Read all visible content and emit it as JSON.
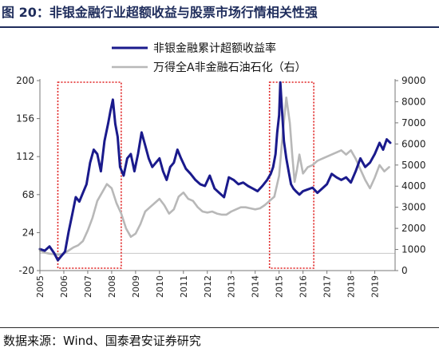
{
  "title": "图 20：非银金融行业超额收益与股票市场行情相关性强",
  "source": "数据来源：Wind、国泰君安证券研究",
  "chart_data": {
    "type": "line",
    "xlabel": "",
    "x_ticks": [
      "2005",
      "2006",
      "2007",
      "2008",
      "2009",
      "2010",
      "2011",
      "2012",
      "2013",
      "2014",
      "2015",
      "2016",
      "2017",
      "2018",
      "2019"
    ],
    "y_left": {
      "range": [
        -20,
        200
      ],
      "ticks": [
        "-20",
        "24",
        "68",
        "112",
        "156",
        "200"
      ]
    },
    "y_right": {
      "range": [
        0,
        9000
      ],
      "ticks": [
        "0",
        "1000",
        "2000",
        "3000",
        "4000",
        "5000",
        "6000",
        "7000",
        "8000",
        "9000"
      ]
    },
    "legend_position": "top-center",
    "series": [
      {
        "name": "非银金融累计超额收益率",
        "axis": "left",
        "color": "#1a1a8c",
        "x": [
          2005.0,
          2005.2,
          2005.4,
          2005.6,
          2005.75,
          2005.9,
          2006.05,
          2006.2,
          2006.35,
          2006.5,
          2006.65,
          2006.8,
          2006.95,
          2007.1,
          2007.25,
          2007.4,
          2007.55,
          2007.7,
          2007.85,
          2007.95,
          2008.05,
          2008.15,
          2008.25,
          2008.35,
          2008.5,
          2008.65,
          2008.8,
          2008.95,
          2009.1,
          2009.25,
          2009.4,
          2009.55,
          2009.7,
          2009.85,
          2010.0,
          2010.15,
          2010.3,
          2010.45,
          2010.6,
          2010.75,
          2010.9,
          2011.1,
          2011.3,
          2011.5,
          2011.7,
          2011.9,
          2012.1,
          2012.3,
          2012.5,
          2012.7,
          2012.9,
          2013.1,
          2013.3,
          2013.5,
          2013.7,
          2013.9,
          2014.1,
          2014.3,
          2014.5,
          2014.65,
          2014.75,
          2014.85,
          2014.92,
          2015.0,
          2015.05,
          2015.1,
          2015.2,
          2015.3,
          2015.4,
          2015.5,
          2015.6,
          2015.7,
          2015.85,
          2016.0,
          2016.2,
          2016.4,
          2016.6,
          2016.8,
          2017.0,
          2017.2,
          2017.4,
          2017.6,
          2017.8,
          2018.0,
          2018.2,
          2018.4,
          2018.6,
          2018.8,
          2019.0,
          2019.2,
          2019.35,
          2019.5,
          2019.65
        ],
        "y": [
          5,
          3,
          8,
          0,
          -8,
          -3,
          2,
          25,
          45,
          65,
          60,
          70,
          80,
          105,
          120,
          115,
          95,
          130,
          150,
          165,
          178,
          150,
          135,
          100,
          90,
          110,
          115,
          95,
          115,
          140,
          125,
          110,
          100,
          105,
          110,
          95,
          85,
          100,
          105,
          120,
          110,
          98,
          92,
          85,
          80,
          78,
          90,
          75,
          70,
          65,
          88,
          85,
          80,
          82,
          78,
          75,
          72,
          78,
          85,
          92,
          100,
          115,
          140,
          160,
          198,
          175,
          130,
          110,
          95,
          80,
          75,
          72,
          68,
          72,
          74,
          76,
          70,
          75,
          80,
          92,
          88,
          85,
          88,
          82,
          95,
          110,
          100,
          105,
          115,
          128,
          120,
          132,
          128
        ]
      },
      {
        "name": "万得全A非金融石油石化（右）",
        "axis": "right",
        "color": "#b8b8b8",
        "x": [
          2005.0,
          2005.2,
          2005.4,
          2005.6,
          2005.8,
          2006.0,
          2006.2,
          2006.4,
          2006.6,
          2006.8,
          2007.0,
          2007.2,
          2007.4,
          2007.6,
          2007.8,
          2008.0,
          2008.2,
          2008.4,
          2008.6,
          2008.8,
          2009.0,
          2009.2,
          2009.4,
          2009.6,
          2009.8,
          2010.0,
          2010.2,
          2010.4,
          2010.6,
          2010.8,
          2011.0,
          2011.2,
          2011.4,
          2011.6,
          2011.8,
          2012.0,
          2012.2,
          2012.4,
          2012.6,
          2012.8,
          2013.0,
          2013.2,
          2013.4,
          2013.6,
          2013.8,
          2014.0,
          2014.2,
          2014.4,
          2014.6,
          2014.8,
          2015.0,
          2015.15,
          2015.3,
          2015.45,
          2015.55,
          2015.65,
          2015.75,
          2015.85,
          2016.0,
          2016.2,
          2016.4,
          2016.6,
          2016.8,
          2017.0,
          2017.2,
          2017.4,
          2017.6,
          2017.8,
          2018.0,
          2018.2,
          2018.4,
          2018.6,
          2018.8,
          2019.0,
          2019.2,
          2019.4,
          2019.6
        ],
        "y": [
          950,
          850,
          800,
          780,
          750,
          800,
          950,
          1100,
          1200,
          1400,
          1900,
          2500,
          3300,
          3700,
          4100,
          3900,
          3200,
          2700,
          2000,
          1600,
          1750,
          2200,
          2800,
          3000,
          3200,
          3400,
          3100,
          2700,
          2900,
          3500,
          3700,
          3400,
          3300,
          3000,
          2800,
          2750,
          2800,
          2700,
          2650,
          2650,
          2800,
          2900,
          3000,
          3000,
          2950,
          2900,
          2950,
          3100,
          3300,
          3500,
          4500,
          6500,
          8200,
          7000,
          5500,
          4200,
          4800,
          5500,
          4600,
          4900,
          5000,
          5200,
          5300,
          5400,
          5500,
          5600,
          5700,
          5500,
          5700,
          5300,
          4800,
          4300,
          3900,
          4400,
          5000,
          4700,
          4900
        ]
      }
    ],
    "highlight_boxes": [
      {
        "x_from": 2005.75,
        "x_to": 2008.4,
        "color": "#e02020"
      },
      {
        "x_from": 2014.6,
        "x_to": 2016.45,
        "color": "#e02020"
      }
    ]
  }
}
